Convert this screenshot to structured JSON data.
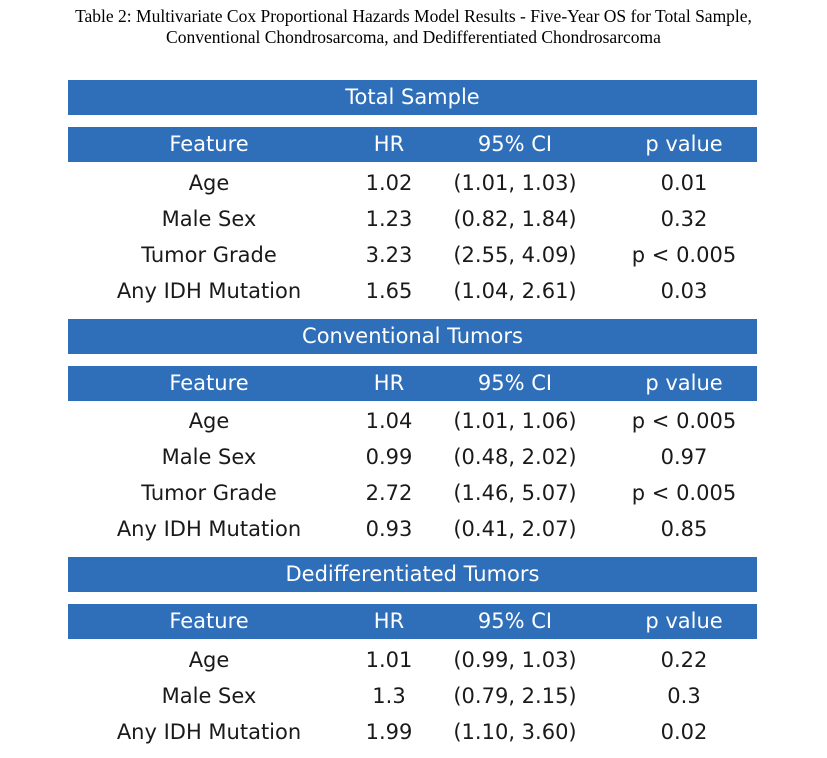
{
  "caption": {
    "line1": "Table 2: Multivariate Cox Proportional Hazards Model Results - Five-Year OS for Total Sample,",
    "line2": "Conventional Chondrosarcoma, and Dedifferentiated Chondrosarcoma"
  },
  "columns": {
    "feature": "Feature",
    "hr": "HR",
    "ci": "95% CI",
    "p": "p value"
  },
  "colors": {
    "band": "#2f6fba",
    "band_text": "#ffffff",
    "body_text": "#1a1a1a"
  },
  "sections": [
    {
      "title": "Total Sample",
      "rows": [
        {
          "feature": "Age",
          "hr": "1.02",
          "ci": "(1.01, 1.03)",
          "p": "0.01"
        },
        {
          "feature": "Male Sex",
          "hr": "1.23",
          "ci": "(0.82, 1.84)",
          "p": "0.32"
        },
        {
          "feature": "Tumor Grade",
          "hr": "3.23",
          "ci": "(2.55, 4.09)",
          "p": "p < 0.005"
        },
        {
          "feature": "Any IDH Mutation",
          "hr": "1.65",
          "ci": "(1.04, 2.61)",
          "p": "0.03"
        }
      ]
    },
    {
      "title": "Conventional Tumors",
      "rows": [
        {
          "feature": "Age",
          "hr": "1.04",
          "ci": "(1.01, 1.06)",
          "p": "p < 0.005"
        },
        {
          "feature": "Male Sex",
          "hr": "0.99",
          "ci": "(0.48, 2.02)",
          "p": "0.97"
        },
        {
          "feature": "Tumor Grade",
          "hr": "2.72",
          "ci": "(1.46, 5.07)",
          "p": "p < 0.005"
        },
        {
          "feature": "Any IDH Mutation",
          "hr": "0.93",
          "ci": "(0.41, 2.07)",
          "p": "0.85"
        }
      ]
    },
    {
      "title": "Dedifferentiated Tumors",
      "rows": [
        {
          "feature": "Age",
          "hr": "1.01",
          "ci": "(0.99, 1.03)",
          "p": "0.22"
        },
        {
          "feature": "Male Sex",
          "hr": "1.3",
          "ci": "(0.79, 2.15)",
          "p": "0.3"
        },
        {
          "feature": "Any IDH Mutation",
          "hr": "1.99",
          "ci": "(1.10, 3.60)",
          "p": "0.02"
        }
      ]
    }
  ]
}
